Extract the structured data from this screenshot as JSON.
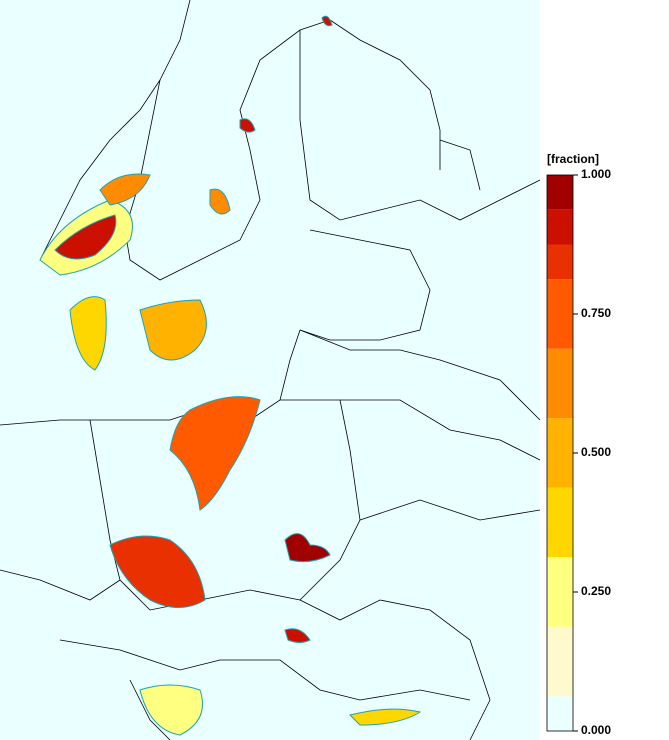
{
  "colorbar": {
    "label": "[fraction]",
    "range": [
      0,
      1
    ],
    "ticks": [
      {
        "value": 0,
        "label": "0.000"
      },
      {
        "value": 0.25,
        "label": "0.250"
      },
      {
        "value": 0.5,
        "label": "0.500"
      },
      {
        "value": 0.75,
        "label": "0.750"
      },
      {
        "value": 1,
        "label": "1.000"
      }
    ],
    "levels": [
      0,
      0.0625,
      0.1875,
      0.3125,
      0.4375,
      0.5625,
      0.6875,
      0.8125,
      0.875,
      0.9375,
      1
    ],
    "colors": [
      "#eaffff",
      "#fffacd",
      "#ffff80",
      "#ffd700",
      "#ffb300",
      "#ff8c00",
      "#ff5a00",
      "#e83000",
      "#cc1000",
      "#a00000"
    ]
  }
}
